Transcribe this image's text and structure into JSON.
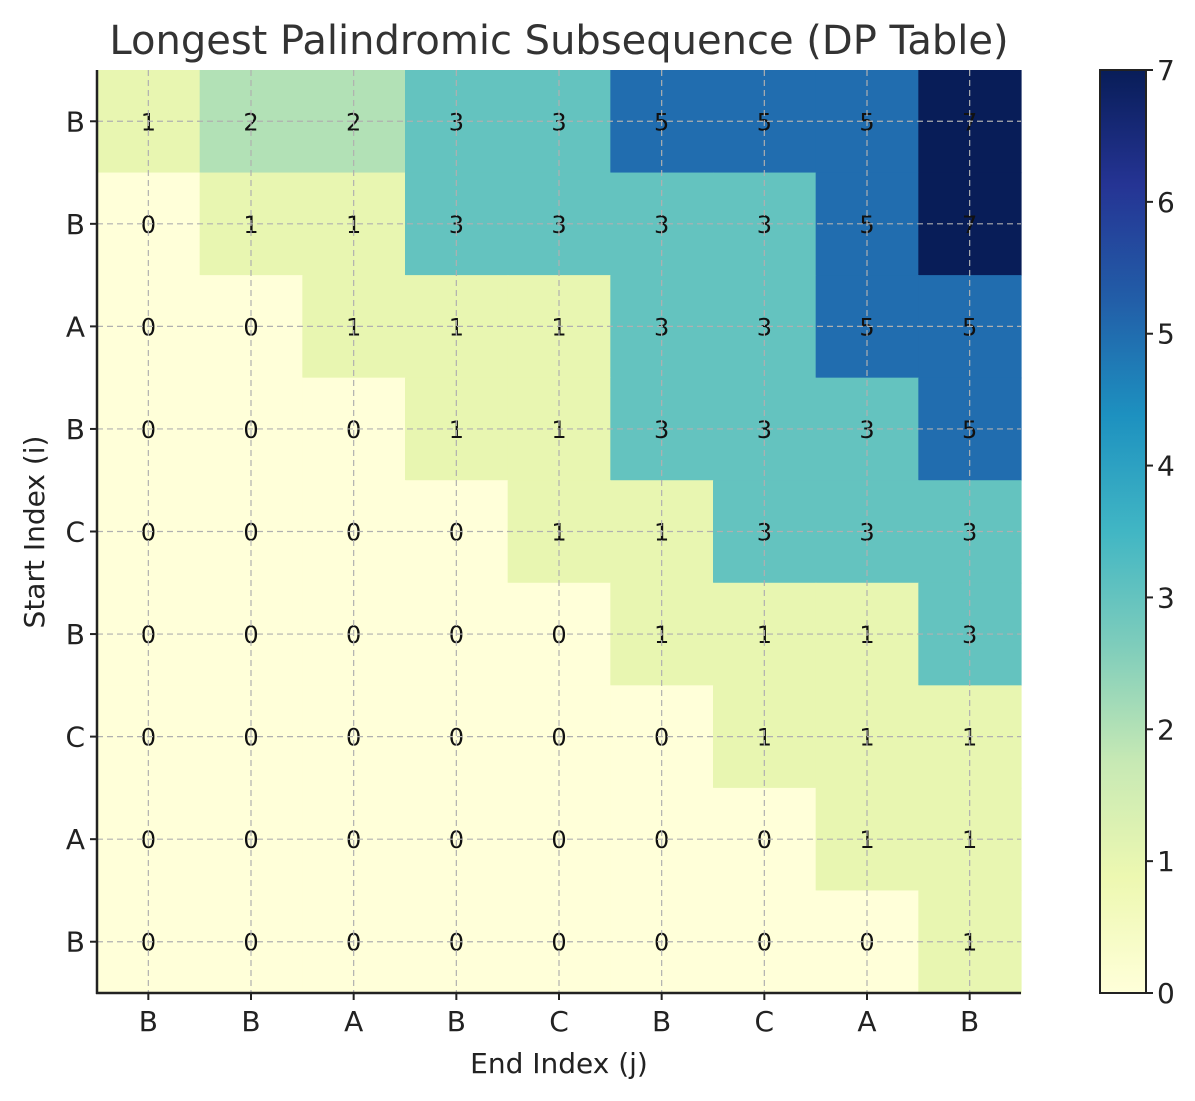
{
  "chart_data": {
    "type": "heatmap",
    "title": "Longest Palindromic Subsequence (DP Table)",
    "xlabel": "End Index (j)",
    "ylabel": "Start Index (i)",
    "x_categories": [
      "B",
      "B",
      "A",
      "B",
      "C",
      "B",
      "C",
      "A",
      "B"
    ],
    "y_categories": [
      "B",
      "B",
      "A",
      "B",
      "C",
      "B",
      "C",
      "A",
      "B"
    ],
    "values": [
      [
        1,
        2,
        2,
        3,
        3,
        5,
        5,
        5,
        7
      ],
      [
        0,
        1,
        1,
        3,
        3,
        3,
        3,
        5,
        7
      ],
      [
        0,
        0,
        1,
        1,
        1,
        3,
        3,
        5,
        5
      ],
      [
        0,
        0,
        0,
        1,
        1,
        3,
        3,
        3,
        5
      ],
      [
        0,
        0,
        0,
        0,
        1,
        1,
        3,
        3,
        3
      ],
      [
        0,
        0,
        0,
        0,
        0,
        1,
        1,
        1,
        3
      ],
      [
        0,
        0,
        0,
        0,
        0,
        0,
        1,
        1,
        1
      ],
      [
        0,
        0,
        0,
        0,
        0,
        0,
        0,
        1,
        1
      ],
      [
        0,
        0,
        0,
        0,
        0,
        0,
        0,
        0,
        1
      ]
    ],
    "value_range": [
      0,
      7
    ],
    "colorbar_ticks": [
      0,
      1,
      2,
      3,
      4,
      5,
      6,
      7
    ],
    "colormap": "YlGnBu",
    "colormap_stops": [
      "#ffffd9",
      "#edf8b1",
      "#c7e9b4",
      "#7fcdbb",
      "#41b6c4",
      "#1d91c0",
      "#225ea8",
      "#253494",
      "#081d58"
    ],
    "cell_labels_shown": true,
    "grid": true,
    "colorbar_position": "right"
  }
}
